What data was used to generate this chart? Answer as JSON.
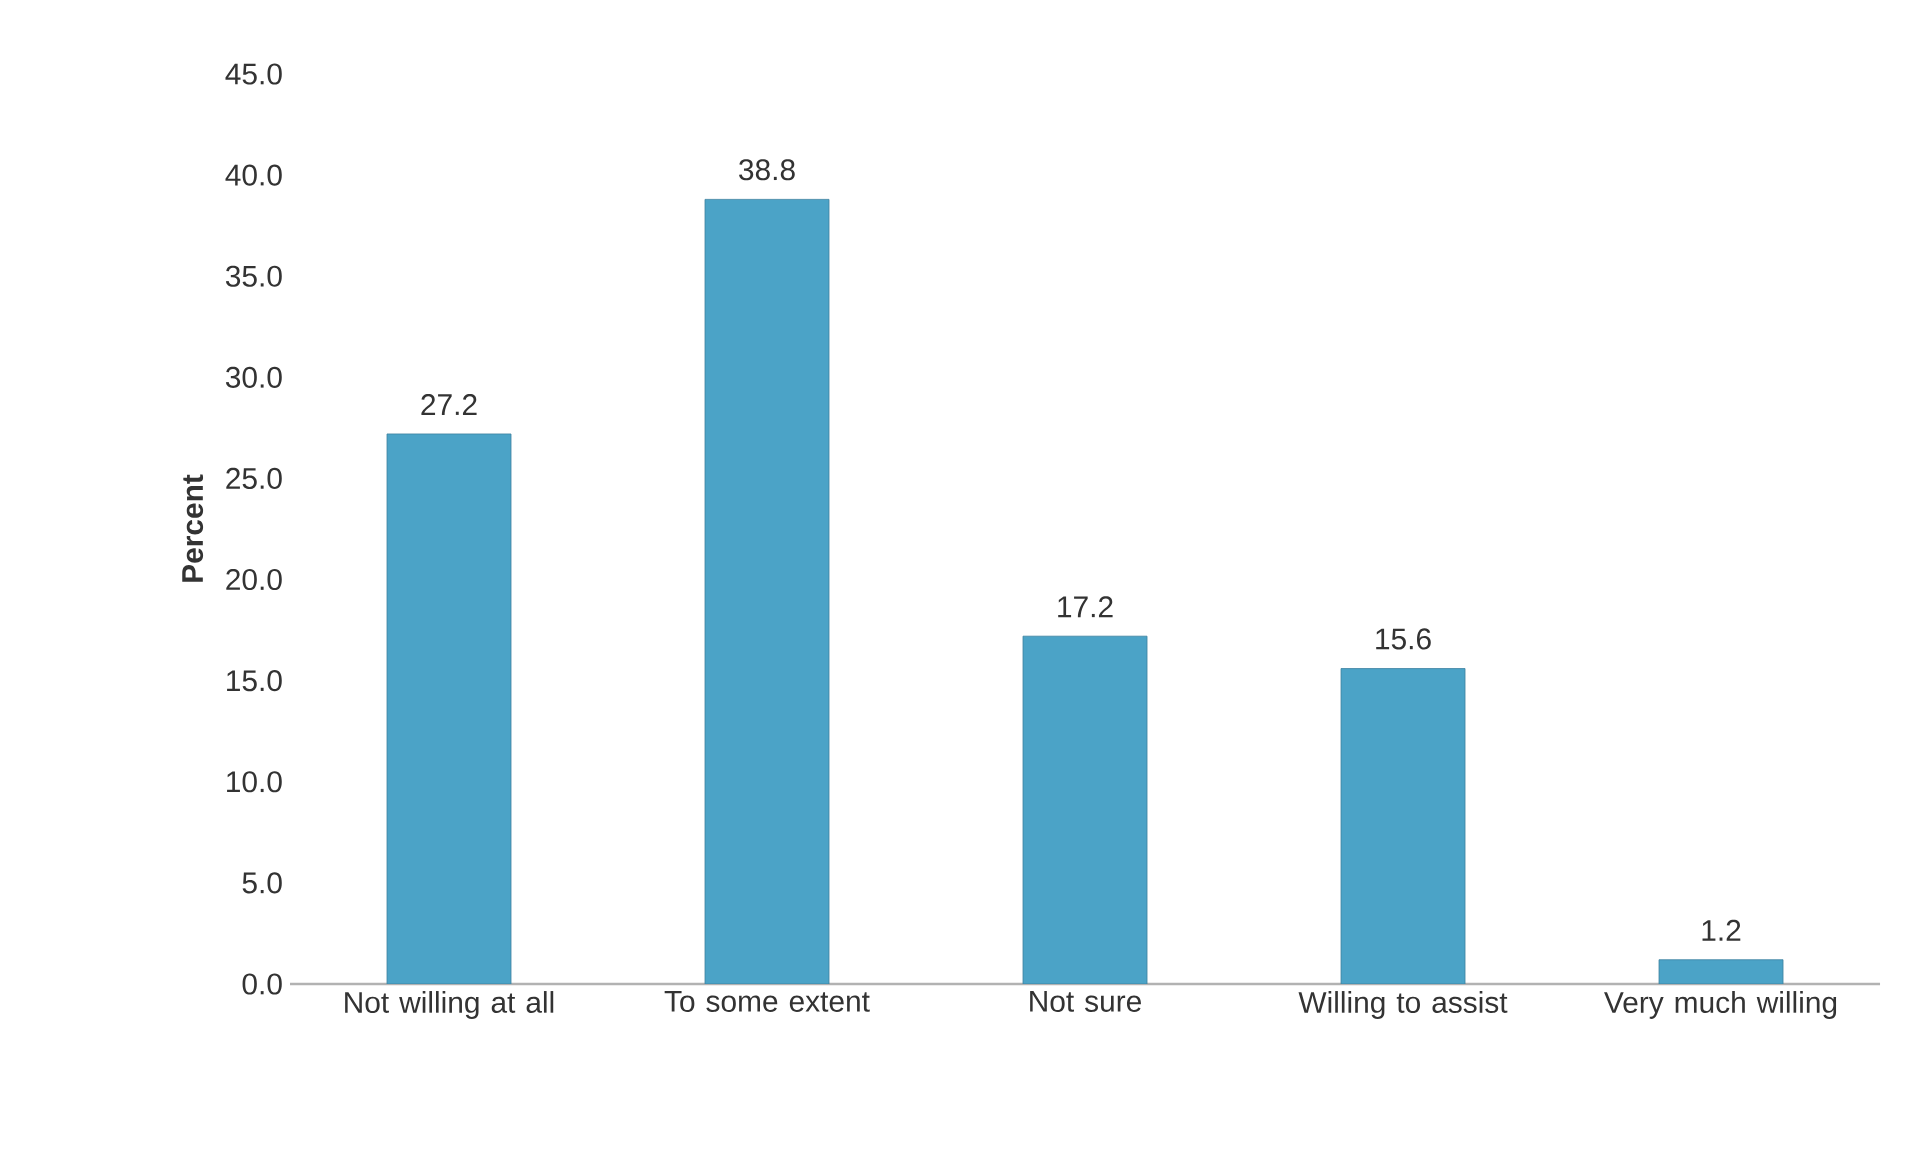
{
  "chart_data": {
    "type": "bar",
    "ylabel": "Percent",
    "categories": [
      "Not willing at all",
      "To some extent",
      "Not sure",
      "Willing to assist",
      "Very much willing"
    ],
    "values": [
      27.2,
      38.8,
      17.2,
      15.6,
      1.2
    ],
    "color": "#4ba3c7",
    "ylim": [
      0,
      45
    ],
    "yticks": [
      {
        "value": 0,
        "label": "0.0"
      },
      {
        "value": 5,
        "label": "5.0"
      },
      {
        "value": 10,
        "label": "10.0"
      },
      {
        "value": 15,
        "label": "15.0"
      },
      {
        "value": 20,
        "label": "20.0"
      },
      {
        "value": 25,
        "label": "25.0"
      },
      {
        "value": 30,
        "label": "30.0"
      },
      {
        "value": 35,
        "label": "35.0"
      },
      {
        "value": 40,
        "label": "40.0"
      },
      {
        "value": 45,
        "label": "45.0"
      }
    ],
    "data_labels": true
  }
}
